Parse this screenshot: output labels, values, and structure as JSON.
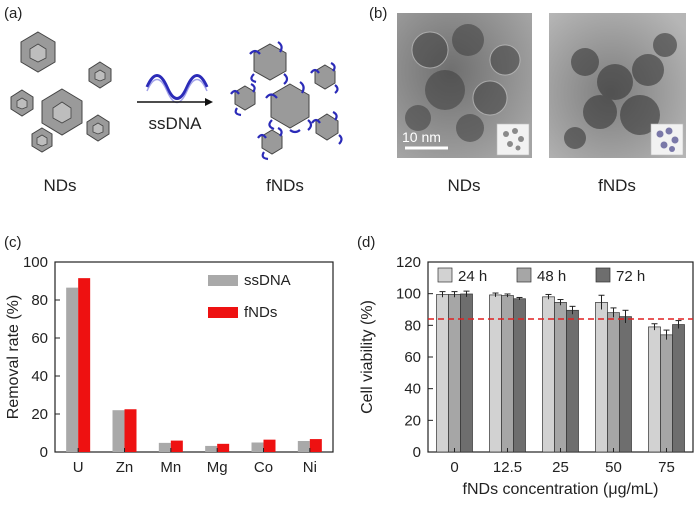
{
  "panel_a": {
    "label": "(a)",
    "arrow_label": "ssDNA",
    "left_caption": "NDs",
    "right_caption": "fNDs"
  },
  "panel_b": {
    "label": "(b)",
    "scalebar_label": "10 nm",
    "left_caption": "NDs",
    "right_caption": "fNDs"
  },
  "panel_c": {
    "label": "(c)"
  },
  "panel_d": {
    "label": "(d)"
  },
  "chart_data": [
    {
      "type": "bar",
      "title": "",
      "xlabel": "",
      "ylabel": "Removal rate (%)",
      "categories": [
        "U",
        "Zn",
        "Mn",
        "Mg",
        "Co",
        "Ni"
      ],
      "series": [
        {
          "name": "ssDNA",
          "color": "#a9a9a9",
          "values": [
            86.5,
            22,
            4.8,
            3.2,
            5.0,
            5.8
          ]
        },
        {
          "name": "fNDs",
          "color": "#ee1111",
          "values": [
            91.5,
            22.5,
            6.0,
            4.3,
            6.5,
            6.8
          ]
        }
      ],
      "ylim": [
        0,
        100
      ],
      "yticks": [
        0,
        20,
        40,
        60,
        80,
        100
      ],
      "grid": false,
      "legend": "top-right"
    },
    {
      "type": "bar",
      "title": "",
      "xlabel": "fNDs concentration (μg/mL)",
      "ylabel": "Cell viability (%)",
      "categories": [
        "0",
        "12.5",
        "25",
        "50",
        "75"
      ],
      "series": [
        {
          "name": "24 h",
          "color": "#d2d2d2",
          "values": [
            99.5,
            99.2,
            98.0,
            94.5,
            79.0
          ],
          "errors": [
            1.8,
            1.2,
            1.5,
            4.5,
            2.0
          ]
        },
        {
          "name": "48 h",
          "color": "#a6a6a6",
          "values": [
            99.5,
            98.8,
            94.5,
            88.0,
            74.0
          ],
          "errors": [
            1.8,
            1.0,
            1.8,
            3.0,
            3.0
          ]
        },
        {
          "name": "72 h",
          "color": "#6e6e6e",
          "values": [
            99.8,
            96.8,
            89.5,
            85.5,
            80.5
          ],
          "errors": [
            1.8,
            0.8,
            2.5,
            4.0,
            2.5
          ]
        }
      ],
      "reference_line": {
        "value": 84,
        "color": "#e02020",
        "style": "dashed"
      },
      "ylim": [
        0,
        120
      ],
      "yticks": [
        0,
        20,
        40,
        60,
        80,
        100,
        120
      ],
      "grid": false,
      "legend": "top"
    }
  ]
}
